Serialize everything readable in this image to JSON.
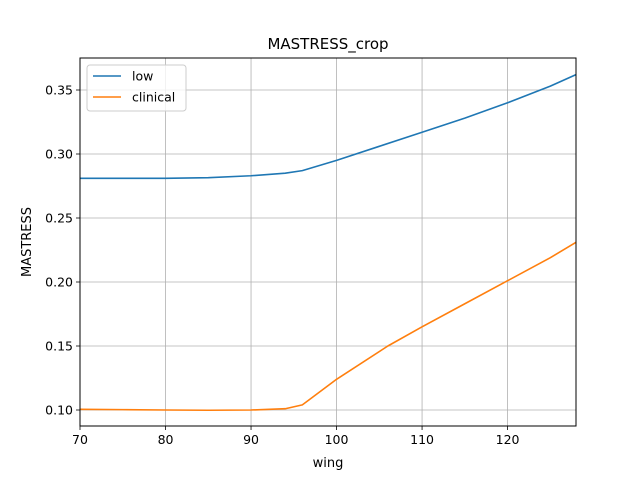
{
  "chart_data": {
    "type": "line",
    "title": "MASTRESS_crop",
    "xlabel": "wing",
    "ylabel": "MASTRESS",
    "xlim": [
      70,
      128
    ],
    "ylim": [
      0.0875,
      0.375
    ],
    "xticks": [
      70,
      80,
      90,
      100,
      110,
      120
    ],
    "yticks": [
      0.1,
      0.15,
      0.2,
      0.25,
      0.3,
      0.35
    ],
    "grid": true,
    "legend_position": "top-left",
    "series": [
      {
        "name": "low",
        "color": "#1f77b4",
        "x": [
          70,
          75,
          80,
          85,
          90,
          94,
          96,
          100,
          105,
          110,
          115,
          120,
          125,
          128
        ],
        "y": [
          0.281,
          0.281,
          0.281,
          0.2815,
          0.283,
          0.285,
          0.287,
          0.295,
          0.306,
          0.317,
          0.328,
          0.34,
          0.353,
          0.362
        ]
      },
      {
        "name": "clinical",
        "color": "#ff7f0e",
        "x": [
          70,
          75,
          80,
          85,
          90,
          94,
          96,
          100,
          106,
          110,
          115,
          120,
          125,
          128
        ],
        "y": [
          0.1005,
          0.1003,
          0.1,
          0.0998,
          0.1,
          0.101,
          0.104,
          0.124,
          0.15,
          0.165,
          0.183,
          0.201,
          0.219,
          0.231
        ]
      }
    ]
  }
}
